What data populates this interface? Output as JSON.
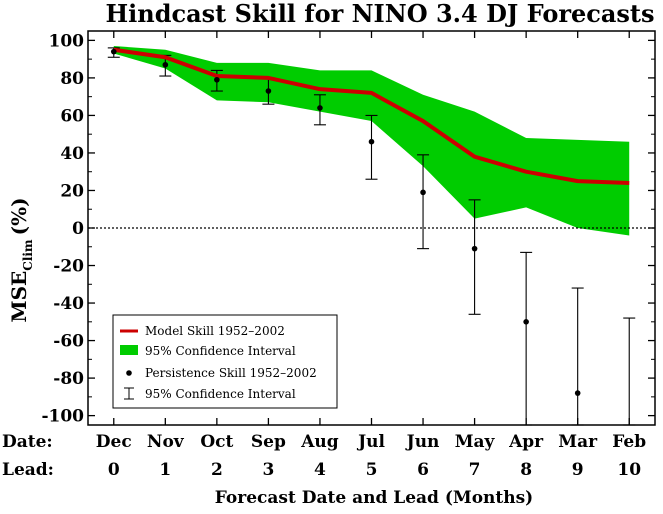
{
  "chart_data": {
    "type": "line",
    "title": "Hindcast Skill for NINO 3.4 DJ Forecasts",
    "xlabel": "Forecast Date and Lead (Months)",
    "ylabel": "MSE",
    "ylabel_subscript": "Clim",
    "ylabel_unit": "(%)",
    "ylim": [
      -105,
      105
    ],
    "yticks": [
      100,
      80,
      60,
      40,
      20,
      0,
      -20,
      -40,
      -60,
      -80,
      -100
    ],
    "x_row_labels": {
      "date": "Date:",
      "lead": "Lead:"
    },
    "x": [
      0,
      1,
      2,
      3,
      4,
      5,
      6,
      7,
      8,
      9,
      10
    ],
    "dates": [
      "Dec",
      "Nov",
      "Oct",
      "Sep",
      "Aug",
      "Jul",
      "Jun",
      "May",
      "Apr",
      "Mar",
      "Feb"
    ],
    "leads": [
      "0",
      "1",
      "2",
      "3",
      "4",
      "5",
      "6",
      "7",
      "8",
      "9",
      "10"
    ],
    "zero_line": true,
    "legend_position": "bottom-left",
    "series": [
      {
        "name": "Model Skill 1952–2002",
        "kind": "line",
        "color": "#cc0000",
        "values": [
          95,
          91,
          81,
          80,
          74,
          72,
          57,
          38,
          30,
          25,
          24
        ]
      },
      {
        "name": "95% Confidence Interval",
        "kind": "band",
        "color": "#00cc00",
        "lower": [
          93,
          85,
          68,
          67,
          62,
          57,
          33,
          5,
          11,
          0,
          -4
        ],
        "upper": [
          97,
          95,
          88,
          88,
          84,
          84,
          71,
          62,
          48,
          47,
          46
        ]
      },
      {
        "name": "Persistence Skill 1952–2002",
        "kind": "points",
        "color": "#000000",
        "values": [
          94,
          87,
          79,
          73,
          64,
          46,
          19,
          -11,
          -50,
          -88,
          null
        ]
      },
      {
        "name": "95% Confidence Interval",
        "kind": "errorbars",
        "color": "#000000",
        "lower": [
          91,
          81,
          73,
          66,
          55,
          26,
          -11,
          -46,
          -105,
          -105,
          -105
        ],
        "upper": [
          96,
          92,
          84,
          80,
          71,
          60,
          39,
          15,
          -13,
          -32,
          -48
        ]
      }
    ]
  }
}
